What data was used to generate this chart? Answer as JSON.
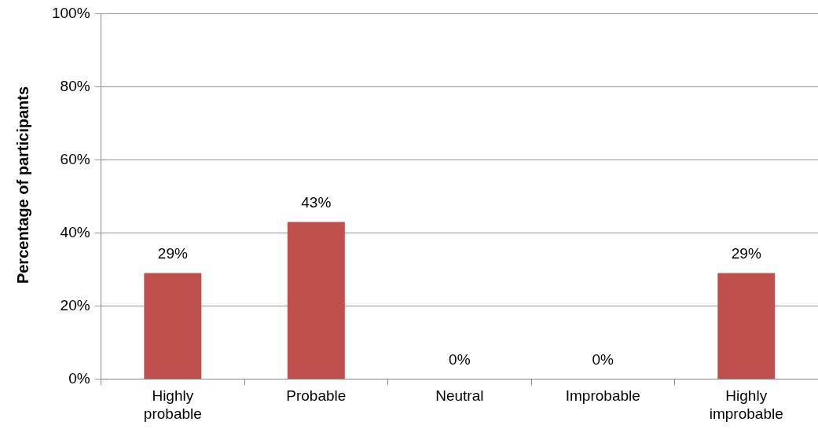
{
  "chart_data": {
    "type": "bar",
    "ylabel": "Percentage of participants",
    "categories": [
      "Highly probable",
      "Probable",
      "Neutral",
      "Improbable",
      "Highly improbable"
    ],
    "values": [
      29,
      43,
      0,
      0,
      29
    ],
    "color": "#c0504d",
    "value_labels": [
      "29%",
      "43%",
      "0%",
      "0%",
      "29%"
    ],
    "ylim": [
      0,
      100
    ],
    "yticks": [
      {
        "value": 0,
        "label": "0%"
      },
      {
        "value": 20,
        "label": "20%"
      },
      {
        "value": 40,
        "label": "40%"
      },
      {
        "value": 60,
        "label": "60%"
      },
      {
        "value": 80,
        "label": "80%"
      },
      {
        "value": 100,
        "label": "100%"
      }
    ],
    "grid": "y",
    "legend": false
  }
}
